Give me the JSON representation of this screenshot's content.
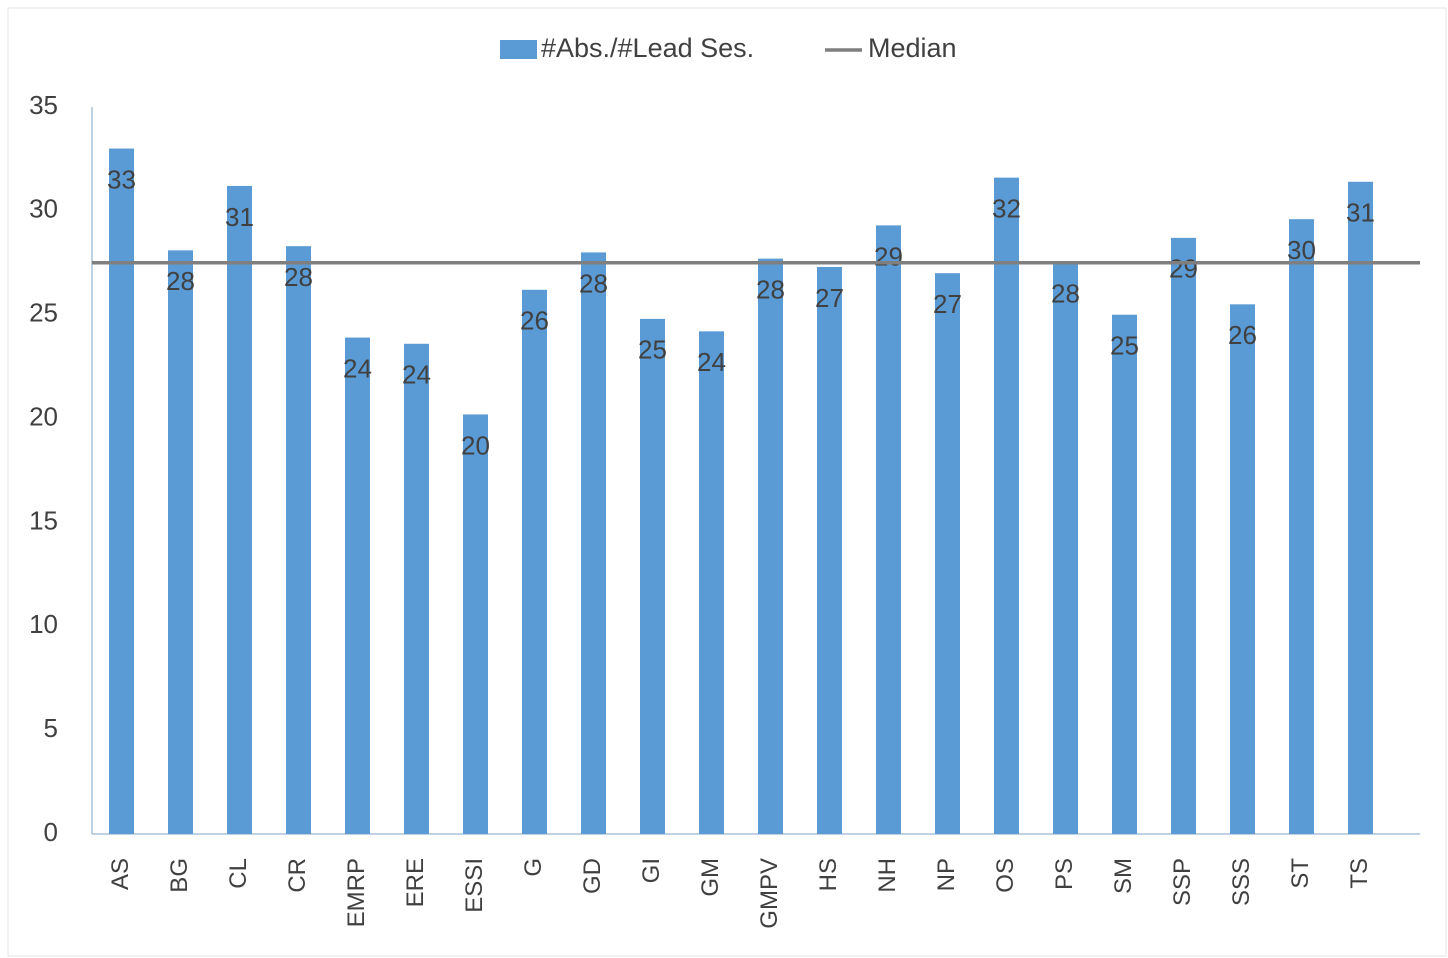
{
  "chart_data": {
    "type": "bar",
    "categories": [
      "AS",
      "BG",
      "CL",
      "CR",
      "EMRP",
      "ERE",
      "ESSI",
      "G",
      "GD",
      "GI",
      "GM",
      "GMPV",
      "HS",
      "NH",
      "NP",
      "OS",
      "PS",
      "SM",
      "SSP",
      "SSS",
      "ST",
      "TS"
    ],
    "series": [
      {
        "name": "#Abs./#Lead Ses.",
        "color": "#5b9bd5",
        "values": [
          33,
          28.1,
          31.2,
          28.3,
          23.9,
          23.6,
          20.2,
          26.2,
          28,
          24.8,
          24.2,
          27.7,
          27.3,
          29.3,
          27,
          31.6,
          27.5,
          25,
          28.7,
          25.5,
          29.6,
          31.4
        ],
        "value_labels": [
          "33",
          "28",
          "31",
          "28",
          "24",
          "24",
          "20",
          "26",
          "28",
          "25",
          "24",
          "28",
          "27",
          "29",
          "27",
          "32",
          "28",
          "25",
          "29",
          "26",
          "30",
          "31"
        ]
      }
    ],
    "median": {
      "name": "Median",
      "color": "#7f7f7f",
      "value": 27.5
    },
    "ylim": [
      0,
      35
    ],
    "yticks": [
      0,
      5,
      10,
      15,
      20,
      25,
      30,
      35
    ],
    "legend": "top"
  }
}
